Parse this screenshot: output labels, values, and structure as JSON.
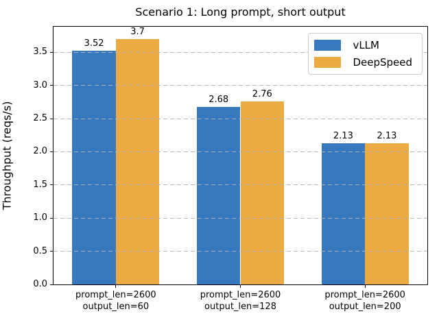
{
  "title": "Scenario 1: Long prompt, short output",
  "y_axis_label": "Throughput (reqs/s)",
  "colors": {
    "vllm_blue": "#3778be",
    "deepspeed_orange": "#ebaa42",
    "grid": "#b2b2b2",
    "frame": "#000000",
    "background": "#ffffff"
  },
  "chart_data": {
    "type": "bar",
    "title": "Scenario 1: Long prompt, short output",
    "xlabel": "",
    "ylabel": "Throughput (reqs/s)",
    "categories": [
      [
        "prompt_len=2600",
        "output_len=60"
      ],
      [
        "prompt_len=2600",
        "output_len=128"
      ],
      [
        "prompt_len=2600",
        "output_len=200"
      ]
    ],
    "series": [
      {
        "name": "vLLM",
        "color": "#3778be",
        "values": [
          3.52,
          2.68,
          2.13
        ],
        "value_labels": [
          "3.52",
          "2.68",
          "2.13"
        ]
      },
      {
        "name": "DeepSpeed",
        "color": "#ebaa42",
        "values": [
          3.7,
          2.76,
          2.13
        ],
        "value_labels": [
          "3.7",
          "2.76",
          "2.13"
        ]
      }
    ],
    "yticks": [
      "0.0",
      "0.5",
      "1.0",
      "1.5",
      "2.0",
      "2.5",
      "3.0",
      "3.5"
    ],
    "ylim": [
      0,
      3.885
    ],
    "bar_width_fraction": 0.35,
    "grid": {
      "axis": "y",
      "style": "dashed",
      "color": "#b2b2b2",
      "drawn_above_bars": true
    },
    "legend_position": "upper right"
  }
}
